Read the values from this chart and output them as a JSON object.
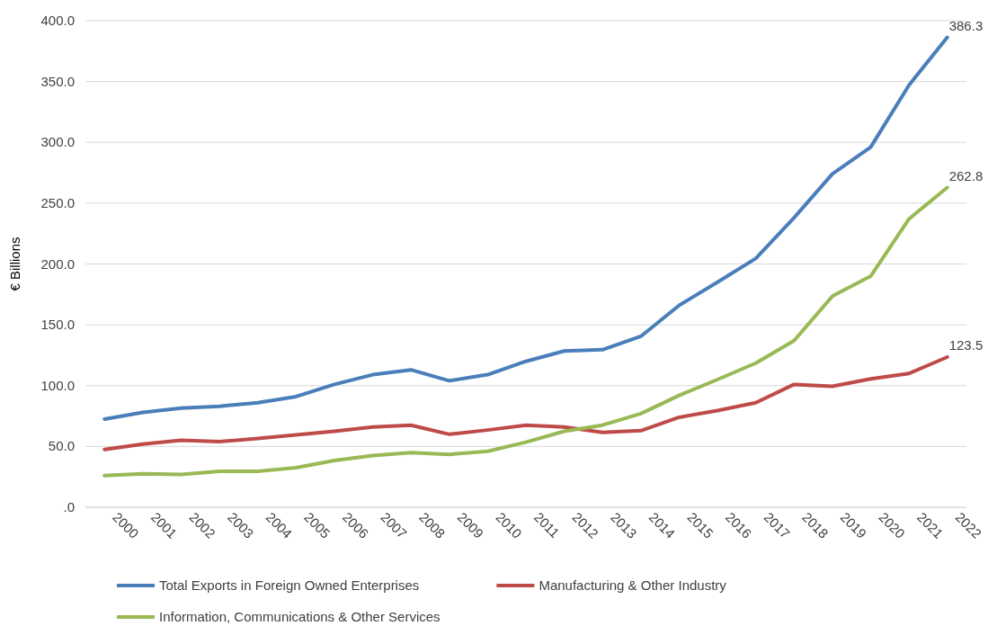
{
  "chart_data": {
    "type": "line",
    "ylabel": "€ Billions",
    "categories": [
      "2000",
      "2001",
      "2002",
      "2003",
      "2004",
      "2005",
      "2006",
      "2007",
      "2008",
      "2009",
      "2010",
      "2011",
      "2012",
      "2013",
      "2014",
      "2015",
      "2016",
      "2017",
      "2018",
      "2019",
      "2020",
      "2021",
      "2022"
    ],
    "series": [
      {
        "name": "Total Exports in Foreign Owned Enterprises",
        "color": "#4a7ebb",
        "values": [
          72.5,
          78,
          81.5,
          83,
          86,
          91,
          101,
          109,
          113,
          104,
          109,
          120,
          128.5,
          129.5,
          140.5,
          166,
          185,
          204.5,
          238,
          274,
          296,
          347,
          386.3
        ],
        "value_labels": [
          null,
          null,
          null,
          null,
          null,
          null,
          null,
          null,
          null,
          null,
          null,
          null,
          null,
          null,
          null,
          null,
          null,
          null,
          null,
          null,
          null,
          null,
          "386.3"
        ]
      },
      {
        "name": "Manufacturing & Other Industry",
        "color": "#be4b48",
        "values": [
          47.5,
          52,
          55,
          54,
          56.5,
          59.5,
          62.5,
          66,
          67.5,
          60,
          63.5,
          67.5,
          66,
          61.5,
          63,
          74,
          79.5,
          86,
          101,
          99.5,
          105.5,
          110,
          123.5
        ],
        "value_labels": [
          null,
          null,
          null,
          null,
          null,
          null,
          null,
          null,
          null,
          null,
          null,
          null,
          null,
          null,
          null,
          null,
          null,
          null,
          null,
          null,
          null,
          null,
          "123.5"
        ]
      },
      {
        "name": "Information, Communications & Other Services",
        "color": "#98b954",
        "values": [
          26,
          27.5,
          27,
          29.5,
          29.5,
          32.5,
          38.5,
          42.5,
          45,
          43.5,
          46,
          53.5,
          62.5,
          67.5,
          77,
          92,
          105,
          118.5,
          137,
          173.5,
          190,
          237,
          262.8
        ],
        "value_labels": [
          null,
          null,
          null,
          null,
          null,
          null,
          null,
          null,
          null,
          null,
          null,
          null,
          null,
          null,
          null,
          null,
          null,
          null,
          null,
          null,
          null,
          null,
          "262.8"
        ]
      }
    ],
    "ylim": [
      0,
      400
    ],
    "yticks": [
      {
        "value": 0,
        "label": ".0"
      },
      {
        "value": 50,
        "label": "50.0"
      },
      {
        "value": 100,
        "label": "100.0"
      },
      {
        "value": 150,
        "label": "150.0"
      },
      {
        "value": 200,
        "label": "200.0"
      },
      {
        "value": 250,
        "label": "250.0"
      },
      {
        "value": 300,
        "label": "300.0"
      },
      {
        "value": 350,
        "label": "350.0"
      },
      {
        "value": 400,
        "label": "400.0"
      }
    ],
    "grid": "y",
    "legend": "bottom",
    "marker": "none",
    "line_style": "solid"
  }
}
